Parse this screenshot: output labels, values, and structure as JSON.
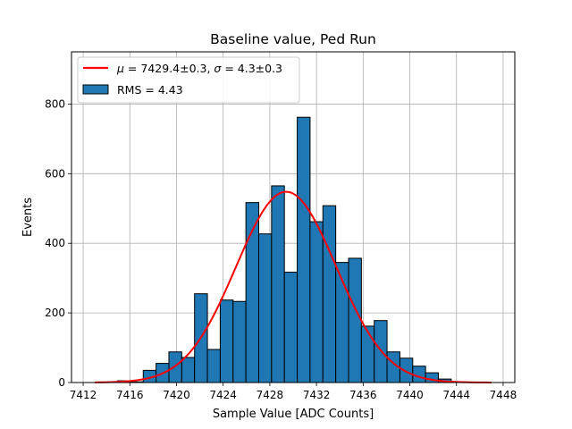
{
  "chart_data": {
    "type": "bar",
    "title": "Baseline value, Ped Run",
    "xlabel": "Sample Value [ADC Counts]",
    "ylabel": "Events",
    "xlim": [
      7411,
      7449
    ],
    "ylim": [
      0,
      950
    ],
    "grid": true,
    "legend_position": "top-left",
    "x_ticks": [
      7412,
      7416,
      7420,
      7424,
      7428,
      7432,
      7436,
      7440,
      7444,
      7448
    ],
    "y_ticks": [
      0,
      200,
      400,
      600,
      800
    ],
    "histogram": {
      "name": "RMS = 4.43",
      "color": "#1f77b4",
      "bin_width": 1.1,
      "bins": [
        {
          "x": 7415.5,
          "count": 5
        },
        {
          "x": 7416.6,
          "count": 2
        },
        {
          "x": 7417.7,
          "count": 35
        },
        {
          "x": 7418.8,
          "count": 55
        },
        {
          "x": 7419.9,
          "count": 88
        },
        {
          "x": 7421.0,
          "count": 72
        },
        {
          "x": 7422.1,
          "count": 255
        },
        {
          "x": 7423.2,
          "count": 95
        },
        {
          "x": 7424.3,
          "count": 237
        },
        {
          "x": 7425.4,
          "count": 233
        },
        {
          "x": 7426.5,
          "count": 517
        },
        {
          "x": 7427.6,
          "count": 427
        },
        {
          "x": 7428.7,
          "count": 565
        },
        {
          "x": 7429.8,
          "count": 317
        },
        {
          "x": 7430.9,
          "count": 762
        },
        {
          "x": 7432.0,
          "count": 462
        },
        {
          "x": 7433.1,
          "count": 508
        },
        {
          "x": 7434.2,
          "count": 345
        },
        {
          "x": 7435.3,
          "count": 357
        },
        {
          "x": 7436.4,
          "count": 162
        },
        {
          "x": 7437.5,
          "count": 178
        },
        {
          "x": 7438.6,
          "count": 88
        },
        {
          "x": 7439.7,
          "count": 70
        },
        {
          "x": 7440.8,
          "count": 47
        },
        {
          "x": 7441.9,
          "count": 28
        },
        {
          "x": 7443.0,
          "count": 10
        },
        {
          "x": 7444.1,
          "count": 2
        }
      ]
    },
    "fit": {
      "name": "$\\mu = 7429.4{\\pm}0.3, \\sigma = 4.3{\\pm}0.3$",
      "legend_label_parts": [
        "μ",
        " = 7429.4±0.3, ",
        "σ",
        " = 4.3±0.3"
      ],
      "color": "#ff0000",
      "type": "gaussian",
      "mu": 7429.4,
      "sigma": 4.3,
      "amplitude": 548,
      "x_range": [
        7413,
        7447
      ]
    }
  }
}
